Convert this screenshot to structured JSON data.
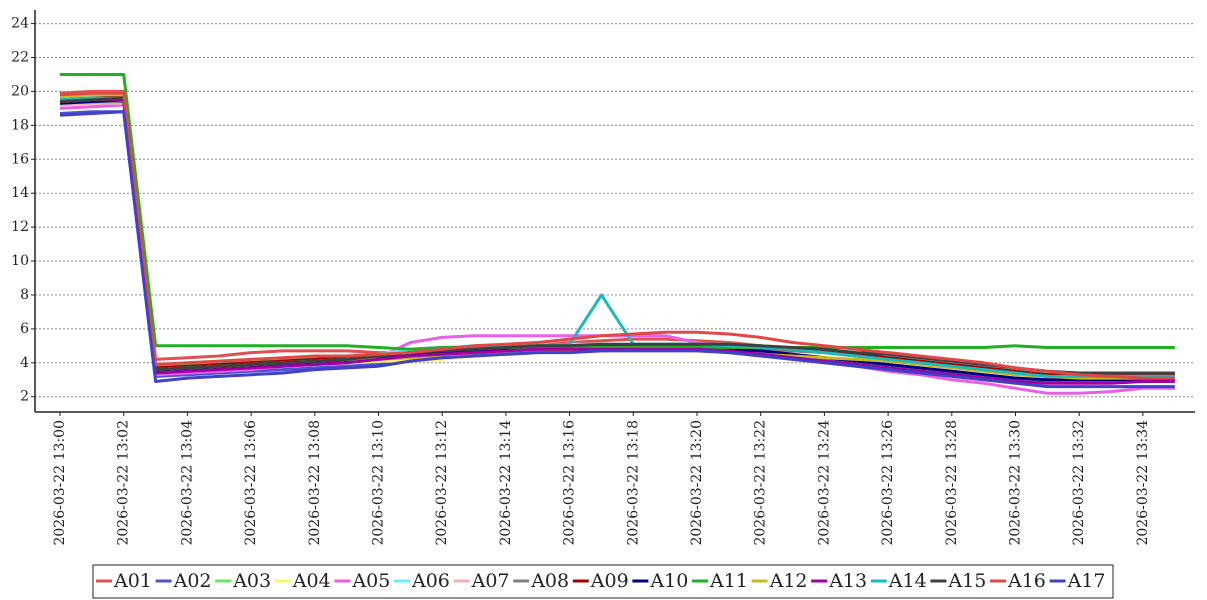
{
  "chart_data": {
    "type": "line",
    "categories": [
      "2026-03-22 13:00",
      null,
      "2026-03-22 13:02",
      null,
      "2026-03-22 13:04",
      null,
      "2026-03-22 13:06",
      null,
      "2026-03-22 13:08",
      null,
      "2026-03-22 13:10",
      null,
      "2026-03-22 13:12",
      null,
      "2026-03-22 13:14",
      null,
      "2026-03-22 13:16",
      null,
      "2026-03-22 13:18",
      null,
      "2026-03-22 13:20",
      null,
      "2026-03-22 13:22",
      null,
      "2026-03-22 13:24",
      null,
      "2026-03-22 13:26",
      null,
      "2026-03-22 13:28",
      null,
      "2026-03-22 13:30",
      null,
      "2026-03-22 13:32",
      null,
      "2026-03-22 13:34",
      null
    ],
    "ylim": [
      1.1,
      24.8
    ],
    "yticks": [
      2,
      4,
      6,
      8,
      10,
      12,
      14,
      16,
      18,
      20,
      22,
      24
    ],
    "grid": true,
    "series": [
      {
        "name": "A01",
        "color": "#e05050",
        "values": [
          19.9,
          20,
          20,
          4.2,
          4.3,
          4.4,
          4.6,
          4.7,
          4.7,
          4.7,
          4.6,
          4.6,
          4.7,
          4.8,
          4.9,
          5,
          5.2,
          5.3,
          5.4,
          5.4,
          5.3,
          5.2,
          5,
          4.8,
          4.6,
          4.4,
          4.2,
          4,
          3.8,
          3.6,
          3.4,
          3.2,
          3.1,
          3,
          3,
          3
        ]
      },
      {
        "name": "A02",
        "color": "#5050d0",
        "values": [
          18.7,
          18.8,
          18.8,
          3.2,
          3.3,
          3.4,
          3.5,
          3.6,
          3.7,
          3.8,
          3.9,
          4.1,
          4.3,
          4.5,
          4.6,
          4.7,
          4.8,
          4.9,
          4.9,
          4.9,
          4.9,
          4.8,
          4.6,
          4.4,
          4.2,
          4,
          3.8,
          3.6,
          3.4,
          3.2,
          3,
          2.9,
          2.9,
          2.9,
          3,
          3
        ]
      },
      {
        "name": "A03",
        "color": "#60e860",
        "values": [
          19.8,
          19.9,
          19.9,
          3.8,
          3.9,
          4,
          4.1,
          4.2,
          4.3,
          4.3,
          4.4,
          4.5,
          4.6,
          4.7,
          4.8,
          4.9,
          5,
          5,
          5,
          5,
          5,
          5,
          4.9,
          4.8,
          4.7,
          4.5,
          4.3,
          4.1,
          3.9,
          3.7,
          3.5,
          3.4,
          3.4,
          3.4,
          3.4,
          3.4
        ]
      },
      {
        "name": "A04",
        "color": "#f8f860",
        "values": [
          19.4,
          19.5,
          19.5,
          3.4,
          3.5,
          3.6,
          3.7,
          3.8,
          3.9,
          4,
          4.1,
          4.1,
          4.2,
          4.4,
          4.5,
          4.6,
          4.7,
          4.8,
          4.8,
          4.8,
          4.8,
          4.7,
          4.6,
          4.5,
          4.3,
          4.1,
          3.9,
          3.7,
          3.5,
          3.3,
          3.1,
          3,
          3,
          3,
          3,
          3
        ]
      },
      {
        "name": "A05",
        "color": "#e860e8",
        "values": [
          19,
          19.1,
          19.2,
          3.3,
          3.4,
          3.5,
          3.6,
          3.8,
          3.9,
          4,
          4.3,
          5.2,
          5.5,
          5.6,
          5.6,
          5.6,
          5.6,
          5.6,
          5.6,
          5.6,
          5.2,
          4.9,
          4.6,
          4.3,
          4,
          3.8,
          3.5,
          3.3,
          3,
          2.8,
          2.5,
          2.2,
          2.2,
          2.3,
          2.5,
          2.5
        ]
      },
      {
        "name": "A06",
        "color": "#60f0f0",
        "values": [
          19.6,
          19.7,
          19.7,
          3.7,
          3.8,
          3.9,
          4,
          4.1,
          4.2,
          4.3,
          4.5,
          4.8,
          4.9,
          5,
          5,
          5,
          5.1,
          5.1,
          5.1,
          5.1,
          5.1,
          5.1,
          5,
          4.9,
          4.8,
          4.6,
          4.4,
          4.2,
          4,
          3.8,
          3.6,
          3.4,
          3.4,
          3.4,
          3.4,
          3.4
        ]
      },
      {
        "name": "A07",
        "color": "#f0b0b0",
        "values": [
          19.2,
          19.3,
          19.3,
          3.5,
          3.6,
          3.7,
          3.8,
          3.9,
          4,
          4.1,
          4.2,
          4.3,
          4.4,
          4.6,
          4.7,
          4.8,
          4.9,
          5,
          5,
          5,
          5,
          4.9,
          4.7,
          4.5,
          4.3,
          4.1,
          3.9,
          3.7,
          3.5,
          3.3,
          3.1,
          3,
          3,
          3,
          3,
          3
        ]
      },
      {
        "name": "A08",
        "color": "#808080",
        "values": [
          19.3,
          19.4,
          19.4,
          3.6,
          3.7,
          3.9,
          4,
          4.1,
          4.2,
          4.3,
          4.4,
          4.5,
          4.6,
          4.7,
          4.8,
          4.9,
          5,
          5,
          5,
          5,
          5,
          4.9,
          4.8,
          4.7,
          4.6,
          4.4,
          4.2,
          4,
          3.8,
          3.6,
          3.4,
          3.3,
          3.3,
          3.3,
          3.3,
          3.3
        ]
      },
      {
        "name": "A09",
        "color": "#a00000",
        "values": [
          19.5,
          19.6,
          19.7,
          3.7,
          3.8,
          3.9,
          4,
          4.1,
          4.2,
          4.3,
          4.4,
          4.6,
          4.7,
          4.8,
          4.9,
          5,
          5,
          5,
          5,
          5,
          5,
          5,
          4.9,
          4.8,
          4.7,
          4.5,
          4.3,
          4.1,
          3.9,
          3.7,
          3.5,
          3.3,
          3.3,
          3.3,
          3.3,
          3.3
        ]
      },
      {
        "name": "A10",
        "color": "#000080",
        "values": [
          19.3,
          19.4,
          19.5,
          3.5,
          3.6,
          3.7,
          3.8,
          3.9,
          4,
          4.1,
          4.3,
          4.5,
          4.6,
          4.7,
          4.8,
          4.9,
          4.9,
          4.9,
          4.9,
          4.9,
          4.9,
          4.8,
          4.7,
          4.5,
          4.3,
          4.1,
          3.9,
          3.7,
          3.5,
          3.3,
          3.1,
          3,
          3,
          3,
          3,
          3
        ]
      },
      {
        "name": "A11",
        "color": "#22b022",
        "values": [
          21,
          21,
          21,
          5,
          5,
          5,
          5,
          5,
          5,
          5,
          4.9,
          4.8,
          4.9,
          4.9,
          4.9,
          4.9,
          4.9,
          4.9,
          4.9,
          4.9,
          4.9,
          4.9,
          4.9,
          4.9,
          4.9,
          4.9,
          4.9,
          4.9,
          4.9,
          4.9,
          5,
          4.9,
          4.9,
          4.9,
          4.9,
          4.9
        ]
      },
      {
        "name": "A12",
        "color": "#c8b820",
        "values": [
          19.7,
          19.8,
          19.8,
          3.6,
          3.7,
          3.8,
          3.9,
          4,
          4.1,
          4.2,
          4.2,
          4.3,
          4.3,
          4.4,
          4.5,
          4.6,
          4.7,
          4.7,
          4.8,
          4.8,
          4.8,
          4.6,
          4.5,
          4.4,
          4.3,
          4.2,
          4.1,
          3.9,
          3.7,
          3.5,
          3.3,
          3.2,
          3.1,
          3.1,
          3.1,
          3.1
        ]
      },
      {
        "name": "A13",
        "color": "#a000a0",
        "values": [
          19.4,
          19.5,
          19.5,
          3.4,
          3.5,
          3.6,
          3.7,
          3.8,
          3.9,
          4,
          4.2,
          4.4,
          4.5,
          4.6,
          4.7,
          4.8,
          4.8,
          4.8,
          4.8,
          4.8,
          4.8,
          4.7,
          4.5,
          4.3,
          4.1,
          3.9,
          3.7,
          3.5,
          3.3,
          3.1,
          2.9,
          2.8,
          2.8,
          2.8,
          2.9,
          2.9
        ]
      },
      {
        "name": "A14",
        "color": "#20b8b8",
        "values": [
          19.5,
          19.6,
          19.6,
          3.6,
          3.7,
          3.8,
          3.9,
          4,
          4.1,
          4.2,
          4.4,
          4.6,
          4.8,
          4.9,
          5,
          5,
          5.1,
          8,
          5.1,
          5.1,
          5.1,
          5,
          4.9,
          4.8,
          4.6,
          4.4,
          4.2,
          4,
          3.8,
          3.6,
          3.4,
          3.2,
          3.2,
          3.2,
          3.2,
          3.2
        ]
      },
      {
        "name": "A15",
        "color": "#404040",
        "values": [
          19.4,
          19.5,
          19.6,
          3.6,
          3.7,
          3.8,
          3.9,
          4,
          4.1,
          4.2,
          4.4,
          4.6,
          4.7,
          4.8,
          4.9,
          5,
          5,
          5.1,
          5.1,
          5.1,
          5.1,
          5.1,
          5,
          4.9,
          4.8,
          4.6,
          4.5,
          4.3,
          4.1,
          3.9,
          3.7,
          3.5,
          3.4,
          3.4,
          3.4,
          3.4
        ]
      },
      {
        "name": "A16",
        "color": "#e04848",
        "values": [
          19.8,
          19.9,
          19.9,
          3.9,
          4,
          4.1,
          4.2,
          4.3,
          4.4,
          4.4,
          4.5,
          4.6,
          4.8,
          5,
          5.1,
          5.2,
          5.4,
          5.6,
          5.7,
          5.8,
          5.8,
          5.7,
          5.5,
          5.2,
          5,
          4.8,
          4.6,
          4.4,
          4.2,
          4,
          3.7,
          3.5,
          3.3,
          3.2,
          3.1,
          3.1
        ]
      },
      {
        "name": "A17",
        "color": "#4040c8",
        "values": [
          18.6,
          18.7,
          18.8,
          2.9,
          3.1,
          3.2,
          3.3,
          3.4,
          3.6,
          3.7,
          3.8,
          4.1,
          4.3,
          4.4,
          4.5,
          4.6,
          4.6,
          4.7,
          4.7,
          4.7,
          4.7,
          4.6,
          4.4,
          4.2,
          4,
          3.8,
          3.6,
          3.4,
          3.2,
          3,
          2.8,
          2.6,
          2.6,
          2.6,
          2.6,
          2.6
        ]
      }
    ]
  }
}
